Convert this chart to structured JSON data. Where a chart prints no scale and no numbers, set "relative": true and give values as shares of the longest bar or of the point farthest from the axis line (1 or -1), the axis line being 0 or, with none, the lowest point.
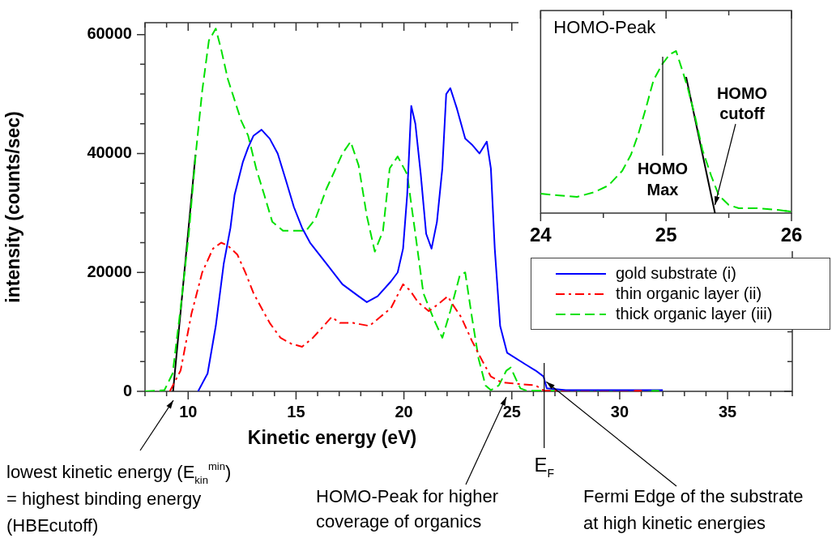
{
  "chart_data": [
    {
      "type": "line",
      "xlabel": "Kinetic energy (eV)",
      "ylabel": "intensity (counts/sec)",
      "xlim": [
        8,
        38
      ],
      "xticks": [
        {
          "value": 8,
          "label": null
        },
        {
          "value": 9,
          "label": null
        },
        10,
        {
          "value": 11,
          "label": null
        },
        {
          "value": 12,
          "label": null
        },
        {
          "value": 13,
          "label": null
        },
        {
          "value": 14,
          "label": null
        },
        15,
        {
          "value": 16,
          "label": null
        },
        {
          "value": 17,
          "label": null
        },
        {
          "value": 18,
          "label": null
        },
        {
          "value": 19,
          "label": null
        },
        20,
        {
          "value": 21,
          "label": null
        },
        {
          "value": 22,
          "label": null
        },
        {
          "value": 23,
          "label": null
        },
        {
          "value": 24,
          "label": null
        },
        25,
        {
          "value": 26,
          "label": null
        },
        {
          "value": 27,
          "label": null
        },
        {
          "value": 28,
          "label": null
        },
        {
          "value": 29,
          "label": null
        },
        30,
        {
          "value": 31,
          "label": null
        },
        {
          "value": 32,
          "label": null
        },
        {
          "value": 33,
          "label": null
        },
        {
          "value": 34,
          "label": null
        },
        35,
        {
          "value": 36,
          "label": null
        },
        {
          "value": 37,
          "label": null
        },
        {
          "value": 38,
          "label": null
        }
      ],
      "ylim": [
        0,
        62000
      ],
      "yticks": [
        0,
        {
          "value": 5000,
          "label": null
        },
        {
          "value": 10000,
          "label": null
        },
        {
          "value": 15000,
          "label": null
        },
        20000,
        {
          "value": 25000,
          "label": null
        },
        {
          "value": 30000,
          "label": null
        },
        {
          "value": 35000,
          "label": null
        },
        40000,
        {
          "value": 45000,
          "label": null
        },
        {
          "value": 50000,
          "label": null
        },
        {
          "value": 55000,
          "label": null
        },
        60000
      ],
      "grid": false,
      "legend": "right",
      "marker": "none",
      "series": [
        {
          "name": "gold substrate (i)",
          "color": "#0000ff",
          "line_style": "solid",
          "x": [
            10.46,
            10.9,
            11.28,
            11.65,
            11.96,
            12.15,
            12.53,
            12.78,
            13.03,
            13.4,
            13.78,
            14.15,
            14.53,
            14.9,
            15.28,
            15.65,
            16.4,
            17.15,
            17.9,
            18.28,
            18.78,
            19.4,
            19.71,
            19.96,
            20.15,
            20.34,
            20.53,
            20.78,
            21.03,
            21.28,
            21.53,
            21.78,
            21.96,
            22.15,
            22.46,
            22.84,
            23.15,
            23.5,
            23.84,
            24.03,
            24.21,
            24.46,
            24.78,
            25.65,
            26.1,
            26.47,
            26.62,
            27.5,
            32
          ],
          "values": [
            0,
            3000,
            11000,
            21500,
            27500,
            33000,
            38500,
            41000,
            43000,
            44000,
            42500,
            40000,
            35500,
            31000,
            27500,
            25000,
            21500,
            18000,
            16000,
            15000,
            16000,
            18500,
            20000,
            24000,
            33000,
            48000,
            45000,
            36500,
            26500,
            24000,
            28500,
            37500,
            50000,
            51000,
            47500,
            42500,
            41500,
            40000,
            42000,
            37500,
            24000,
            11000,
            6500,
            4500,
            3500,
            2500,
            500,
            200,
            200
          ]
        },
        {
          "name": "thin organic layer (ii)",
          "color": "#ff0000",
          "line_style": "dashdot",
          "x": [
            9.15,
            9.65,
            10.15,
            10.65,
            11.15,
            11.53,
            11.84,
            12.28,
            12.65,
            13.03,
            13.4,
            13.78,
            14.28,
            14.78,
            15.28,
            15.78,
            16.28,
            16.65,
            17.03,
            17.65,
            18.4,
            18.9,
            19.4,
            19.96,
            20.28,
            20.65,
            21.15,
            21.53,
            22.03,
            22.28,
            22.65,
            23.15,
            23.65,
            24.03,
            24.53,
            26.1,
            26.5,
            31
          ],
          "values": [
            0,
            3500,
            13000,
            20000,
            24000,
            25000,
            24500,
            23000,
            20000,
            16500,
            14000,
            11500,
            9000,
            8000,
            7500,
            9000,
            11000,
            12500,
            11500,
            11500,
            11000,
            12500,
            14000,
            18000,
            17000,
            15000,
            13500,
            14500,
            16000,
            14500,
            12500,
            8500,
            5000,
            2500,
            1500,
            1000,
            100,
            100
          ]
        },
        {
          "name": "thick organic layer (iii)",
          "color": "#00e000",
          "line_style": "dashed",
          "x": [
            8,
            8.9,
            9.28,
            9.65,
            10.03,
            10.34,
            10.65,
            10.96,
            11.28,
            11.53,
            11.84,
            12.15,
            12.46,
            12.78,
            13.15,
            13.53,
            13.9,
            14.4,
            15.03,
            15.46,
            15.9,
            16.4,
            16.78,
            17.15,
            17.53,
            17.9,
            18.28,
            18.65,
            19.03,
            19.34,
            19.71,
            20.15,
            20.53,
            20.9,
            21.4,
            21.78,
            22.15,
            22.59,
            22.84,
            23.15,
            23.46,
            23.78,
            24.03,
            24.4,
            24.75,
            24.95,
            25.2,
            25.4,
            25.7,
            31.8
          ],
          "values": [
            0,
            200,
            3000,
            14000,
            26500,
            39500,
            50500,
            59000,
            61000,
            57500,
            52500,
            49000,
            45500,
            43000,
            37500,
            33000,
            28500,
            27000,
            27000,
            27000,
            29000,
            34000,
            37000,
            40000,
            42000,
            38000,
            29500,
            23500,
            27000,
            37500,
            39500,
            36500,
            26500,
            16500,
            12000,
            9000,
            13500,
            19500,
            20000,
            12500,
            5500,
            1000,
            200,
            1000,
            3500,
            4000,
            2000,
            500,
            100,
            100
          ]
        },
        {
          "type": "line",
          "color": "#000000",
          "line_style": "solid",
          "x": [
            9.3,
            10.34
          ],
          "values": [
            0,
            39800
          ]
        }
      ],
      "ref_lines": [
        {
          "axis": "x",
          "value": 26.5,
          "label": "E$_{F}$"
        }
      ],
      "annotations": [
        "lowest kinetic energy (E$_{kin}$$^{min}$)\n= highest binding energy\n(HBEcutoff)",
        "HOMO-Peak for higher\ncoverage of organics",
        {
          "text": "Fermi Edge of the substrate\nat high kinetic energies",
          "x": 26.6,
          "y": 1600
        }
      ]
    },
    {
      "type": "line",
      "title": "HOMO-Peak",
      "relative": true,
      "xlim": [
        24,
        26
      ],
      "xticks": [
        24,
        {
          "value": 24.5,
          "label": null
        },
        25,
        {
          "value": 25.5,
          "label": null
        },
        26
      ],
      "grid": false,
      "marker": "none",
      "series": [
        {
          "color": "#00e000",
          "line_style": "dashed",
          "x": [
            24,
            24.13,
            24.29,
            24.43,
            24.54,
            24.65,
            24.72,
            24.78,
            24.84,
            24.9,
            24.97,
            25.03,
            25.08,
            25.13,
            25.17,
            25.23,
            25.29,
            25.36,
            25.42,
            25.5,
            25.58,
            25.72,
            25.89,
            25.99
          ],
          "values": [
            0.12,
            0.11,
            0.1,
            0.13,
            0.17,
            0.26,
            0.36,
            0.49,
            0.65,
            0.82,
            0.92,
            0.98,
            1,
            0.88,
            0.78,
            0.6,
            0.39,
            0.23,
            0.11,
            0.05,
            0.03,
            0.03,
            0.02,
            0.01
          ]
        },
        {
          "type": "line",
          "color": "#000000",
          "line_style": "solid",
          "x": [
            25.16,
            25.39
          ],
          "values": [
            0.84,
            0
          ]
        }
      ],
      "annotations": [
        "HOMO\nMax",
        {
          "text": "HOMO\ncutoff",
          "x": 25.39,
          "y": 0.05
        }
      ]
    }
  ]
}
